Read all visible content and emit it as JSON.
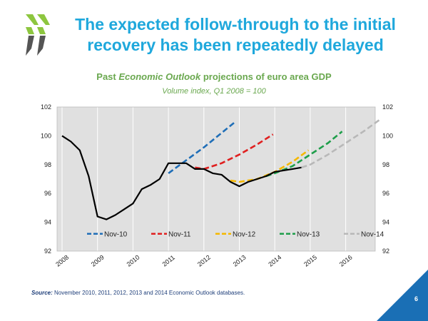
{
  "slide": {
    "title": "The expected follow-through to the initial recovery has been repeatedly delayed",
    "source_label": "Source:",
    "source_text": " November 2010, 2011, 2012, 2013 and 2014 Economic Outlook databases.",
    "page_number": "6"
  },
  "colors": {
    "title": "#1fa8dc",
    "corner": "#1a6fb5",
    "plot_bg": "#e0e0e0",
    "chart_title": "#6aa84f"
  },
  "chart_data": {
    "type": "line",
    "title": "Past Economic Outlook projections of euro area GDP",
    "title_prefix": "Past ",
    "title_italic": "Economic Outlook",
    "title_suffix": " projections of euro area GDP",
    "subtitle": "Volume index, Q1 2008 = 100",
    "xlabel": "",
    "ylabel": "",
    "xlim": [
      2008,
      2017
    ],
    "ylim": [
      92,
      102
    ],
    "y_ticks": [
      92,
      94,
      96,
      98,
      100,
      102
    ],
    "x_ticks": [
      "2008",
      "2009",
      "2010",
      "2011",
      "2012",
      "2013",
      "2014",
      "2015",
      "2016"
    ],
    "grid": "vertical",
    "legend_position": "bottom-center",
    "series": [
      {
        "name": "Nov-10",
        "color": "#1f6eb7",
        "dash": true,
        "x": [
          2011.0,
          2011.5,
          2012.0,
          2012.5,
          2012.85
        ],
        "y": [
          97.4,
          98.3,
          99.2,
          100.2,
          100.9
        ]
      },
      {
        "name": "Nov-11",
        "color": "#e02020",
        "dash": true,
        "x": [
          2011.75,
          2012.0,
          2012.5,
          2013.0,
          2013.5,
          2013.95
        ],
        "y": [
          97.8,
          97.7,
          98.1,
          98.7,
          99.4,
          100.1
        ]
      },
      {
        "name": "Nov-12",
        "color": "#f5b800",
        "dash": true,
        "x": [
          2012.75,
          2013.0,
          2013.5,
          2014.0,
          2014.5,
          2014.95
        ],
        "y": [
          96.9,
          96.8,
          97.0,
          97.5,
          98.2,
          99.0
        ]
      },
      {
        "name": "Nov-13",
        "color": "#1e9e4a",
        "dash": true,
        "x": [
          2013.75,
          2014.0,
          2014.5,
          2015.0,
          2015.5,
          2015.9
        ],
        "y": [
          97.2,
          97.4,
          97.9,
          98.7,
          99.5,
          100.3
        ]
      },
      {
        "name": "Nov-14",
        "color": "#b8b8b8",
        "dash": true,
        "x": [
          2014.75,
          2015.0,
          2015.5,
          2016.0,
          2016.5,
          2016.95
        ],
        "y": [
          97.8,
          98.0,
          98.7,
          99.5,
          100.3,
          101.1
        ]
      },
      {
        "name": "",
        "color": "#000000",
        "dash": false,
        "x": [
          2008.0,
          2008.25,
          2008.5,
          2008.75,
          2009.0,
          2009.25,
          2009.5,
          2009.75,
          2010.0,
          2010.25,
          2010.5,
          2010.75,
          2011.0,
          2011.25,
          2011.5,
          2011.75,
          2012.0,
          2012.25,
          2012.5,
          2012.75,
          2013.0,
          2013.25,
          2013.5,
          2013.75,
          2014.0,
          2014.25,
          2014.5,
          2014.75
        ],
        "y": [
          100.0,
          99.6,
          99.0,
          97.2,
          94.4,
          94.2,
          94.5,
          94.9,
          95.3,
          96.3,
          96.6,
          97.0,
          98.1,
          98.1,
          98.1,
          97.7,
          97.7,
          97.4,
          97.3,
          96.8,
          96.5,
          96.8,
          97.0,
          97.2,
          97.5,
          97.6,
          97.7,
          97.8
        ]
      }
    ]
  }
}
